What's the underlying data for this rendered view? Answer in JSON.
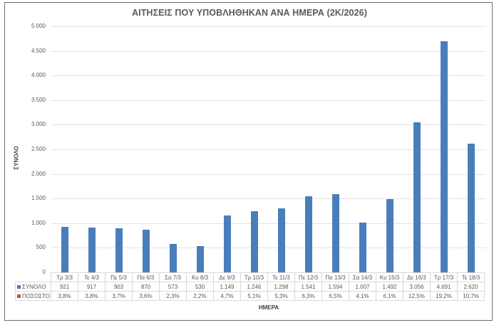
{
  "chart_data": {
    "type": "bar",
    "title": "ΑΙΤΗΣΕΙΣ ΠΟΥ ΥΠΟΒΛΗΘΗΚΑΝ ΑΝΑ ΗΜΕΡΑ (2Κ/2026)",
    "xlabel": "ΗΜΕΡΑ",
    "ylabel": "ΣΥΝΟΛΟ",
    "ylim": [
      0,
      5000
    ],
    "yticks": [
      "0",
      "500",
      "1.000",
      "1.500",
      "2.000",
      "2.500",
      "3.000",
      "3.500",
      "4.000",
      "4.500",
      "5.000"
    ],
    "grid": true,
    "legend_position": "data-table",
    "categories": [
      "Τρ 3/3",
      "Τε 4/3",
      "Πε 5/3",
      "Πα 6/3",
      "Σα 7/3",
      "Κυ 8/3",
      "Δε 9/3",
      "Τρ 10/3",
      "Τε 11/3",
      "Πε 12/3",
      "Πα 13/3",
      "Σα 14/3",
      "Κυ 15/3",
      "Δε 16/3",
      "Τρ 17/3",
      "Τε 18/3"
    ],
    "series": [
      {
        "name": "ΣΥΝΟΛΟ",
        "color": "#4a7ebb",
        "values": [
          921,
          917,
          903,
          870,
          573,
          530,
          1149,
          1246,
          1298,
          1541,
          1594,
          1007,
          1492,
          3056,
          4691,
          2620
        ],
        "labels": [
          "921",
          "917",
          "903",
          "870",
          "573",
          "530",
          "1.149",
          "1.246",
          "1.298",
          "1.541",
          "1.594",
          "1.007",
          "1.492",
          "3.056",
          "4.691",
          "2.620"
        ]
      },
      {
        "name": "ΠΟΣΟΣΤΟ",
        "color": "#c0504d",
        "values": [
          3.8,
          3.8,
          3.7,
          3.6,
          2.3,
          2.2,
          4.7,
          5.1,
          5.3,
          6.3,
          6.5,
          4.1,
          6.1,
          12.5,
          19.2,
          10.7
        ],
        "labels": [
          "3,8%",
          "3,8%",
          "3,7%",
          "3,6%",
          "2,3%",
          "2,2%",
          "4,7%",
          "5,1%",
          "5,3%",
          "6,3%",
          "6,5%",
          "4,1%",
          "6,1%",
          "12,5%",
          "19,2%",
          "10,7%"
        ]
      }
    ]
  }
}
